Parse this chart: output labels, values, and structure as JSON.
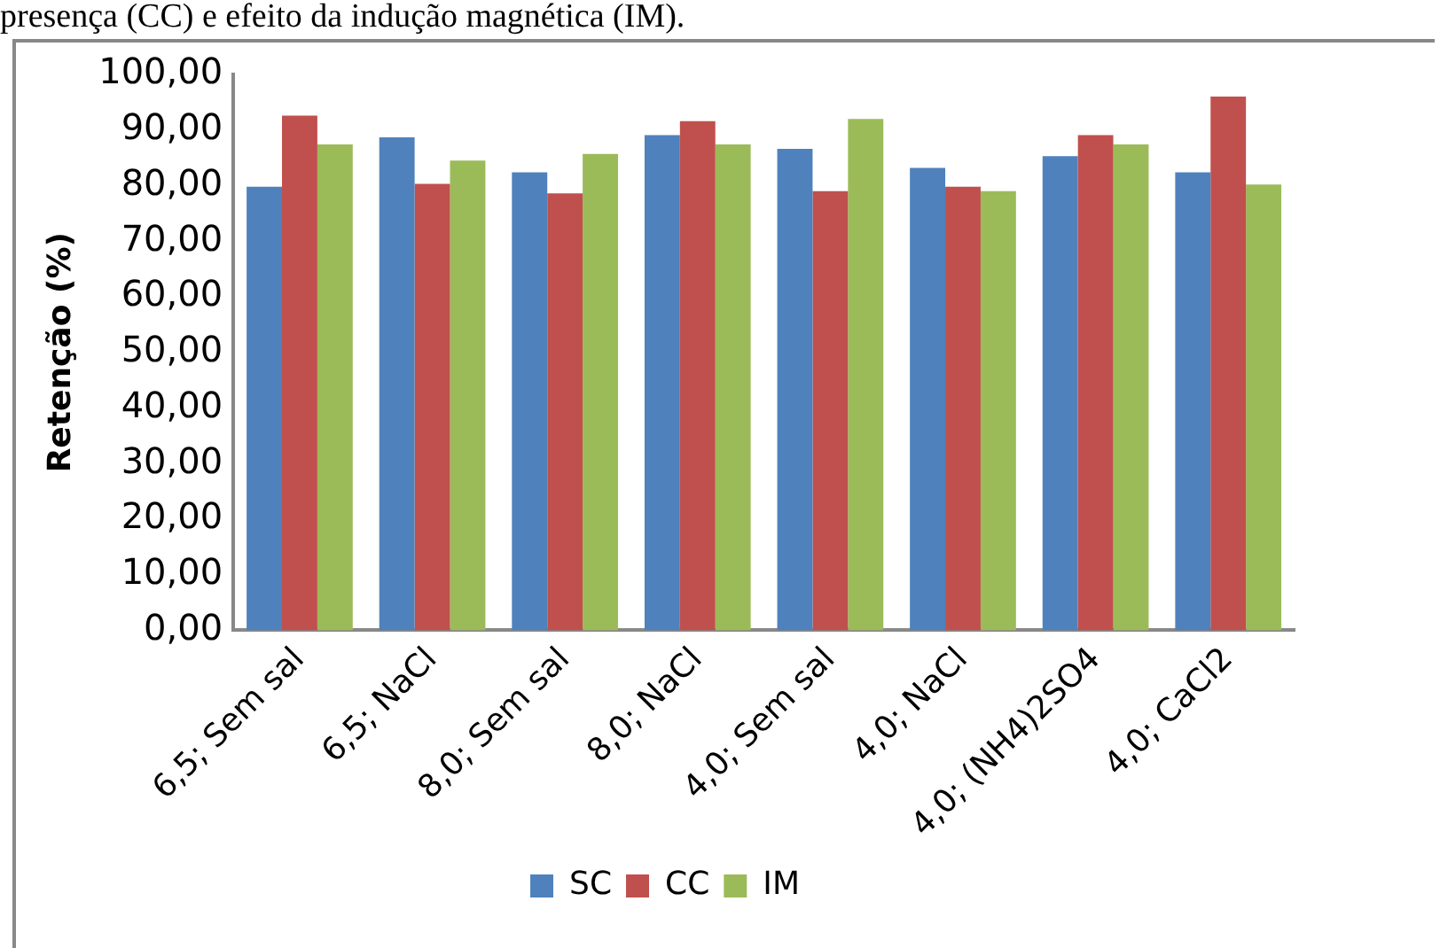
{
  "chart_data": {
    "type": "bar",
    "title": "presença (CC) e efeito da indução magnética (IM).",
    "ylabel": "Retenção (%)",
    "categories": [
      "6,5; Sem sal",
      "6,5; NaCl",
      "8,0; Sem sal",
      "8,0; NaCl",
      "4,0; Sem sal",
      "4,0; NaCl",
      "4,0; (NH4)2SO4",
      "4,0; CaCl2"
    ],
    "series": [
      {
        "name": "SC",
        "color": "#4f81bd",
        "values": [
          79.8,
          88.7,
          82.4,
          89.1,
          86.6,
          83.2,
          85.3,
          82.4
        ]
      },
      {
        "name": "CC",
        "color": "#c0504d",
        "values": [
          92.6,
          80.3,
          78.6,
          91.6,
          79.0,
          79.8,
          89.1,
          96.0
        ]
      },
      {
        "name": "IM",
        "color": "#9bbb59",
        "values": [
          87.4,
          84.5,
          85.7,
          87.4,
          92.0,
          79.0,
          87.4,
          80.2
        ]
      }
    ],
    "ylim": [
      0,
      100
    ],
    "yticks": [
      {
        "value": 0,
        "label": "0,00"
      },
      {
        "value": 10,
        "label": "10,00"
      },
      {
        "value": 20,
        "label": "20,00"
      },
      {
        "value": 30,
        "label": "30,00"
      },
      {
        "value": 40,
        "label": "40,00"
      },
      {
        "value": 50,
        "label": "50,00"
      },
      {
        "value": 60,
        "label": "60,00"
      },
      {
        "value": 70,
        "label": "70,00"
      },
      {
        "value": 80,
        "label": "80,00"
      },
      {
        "value": 90,
        "label": "90,00"
      },
      {
        "value": 100,
        "label": "100,00"
      }
    ],
    "grid": false,
    "legend": "bottom"
  }
}
